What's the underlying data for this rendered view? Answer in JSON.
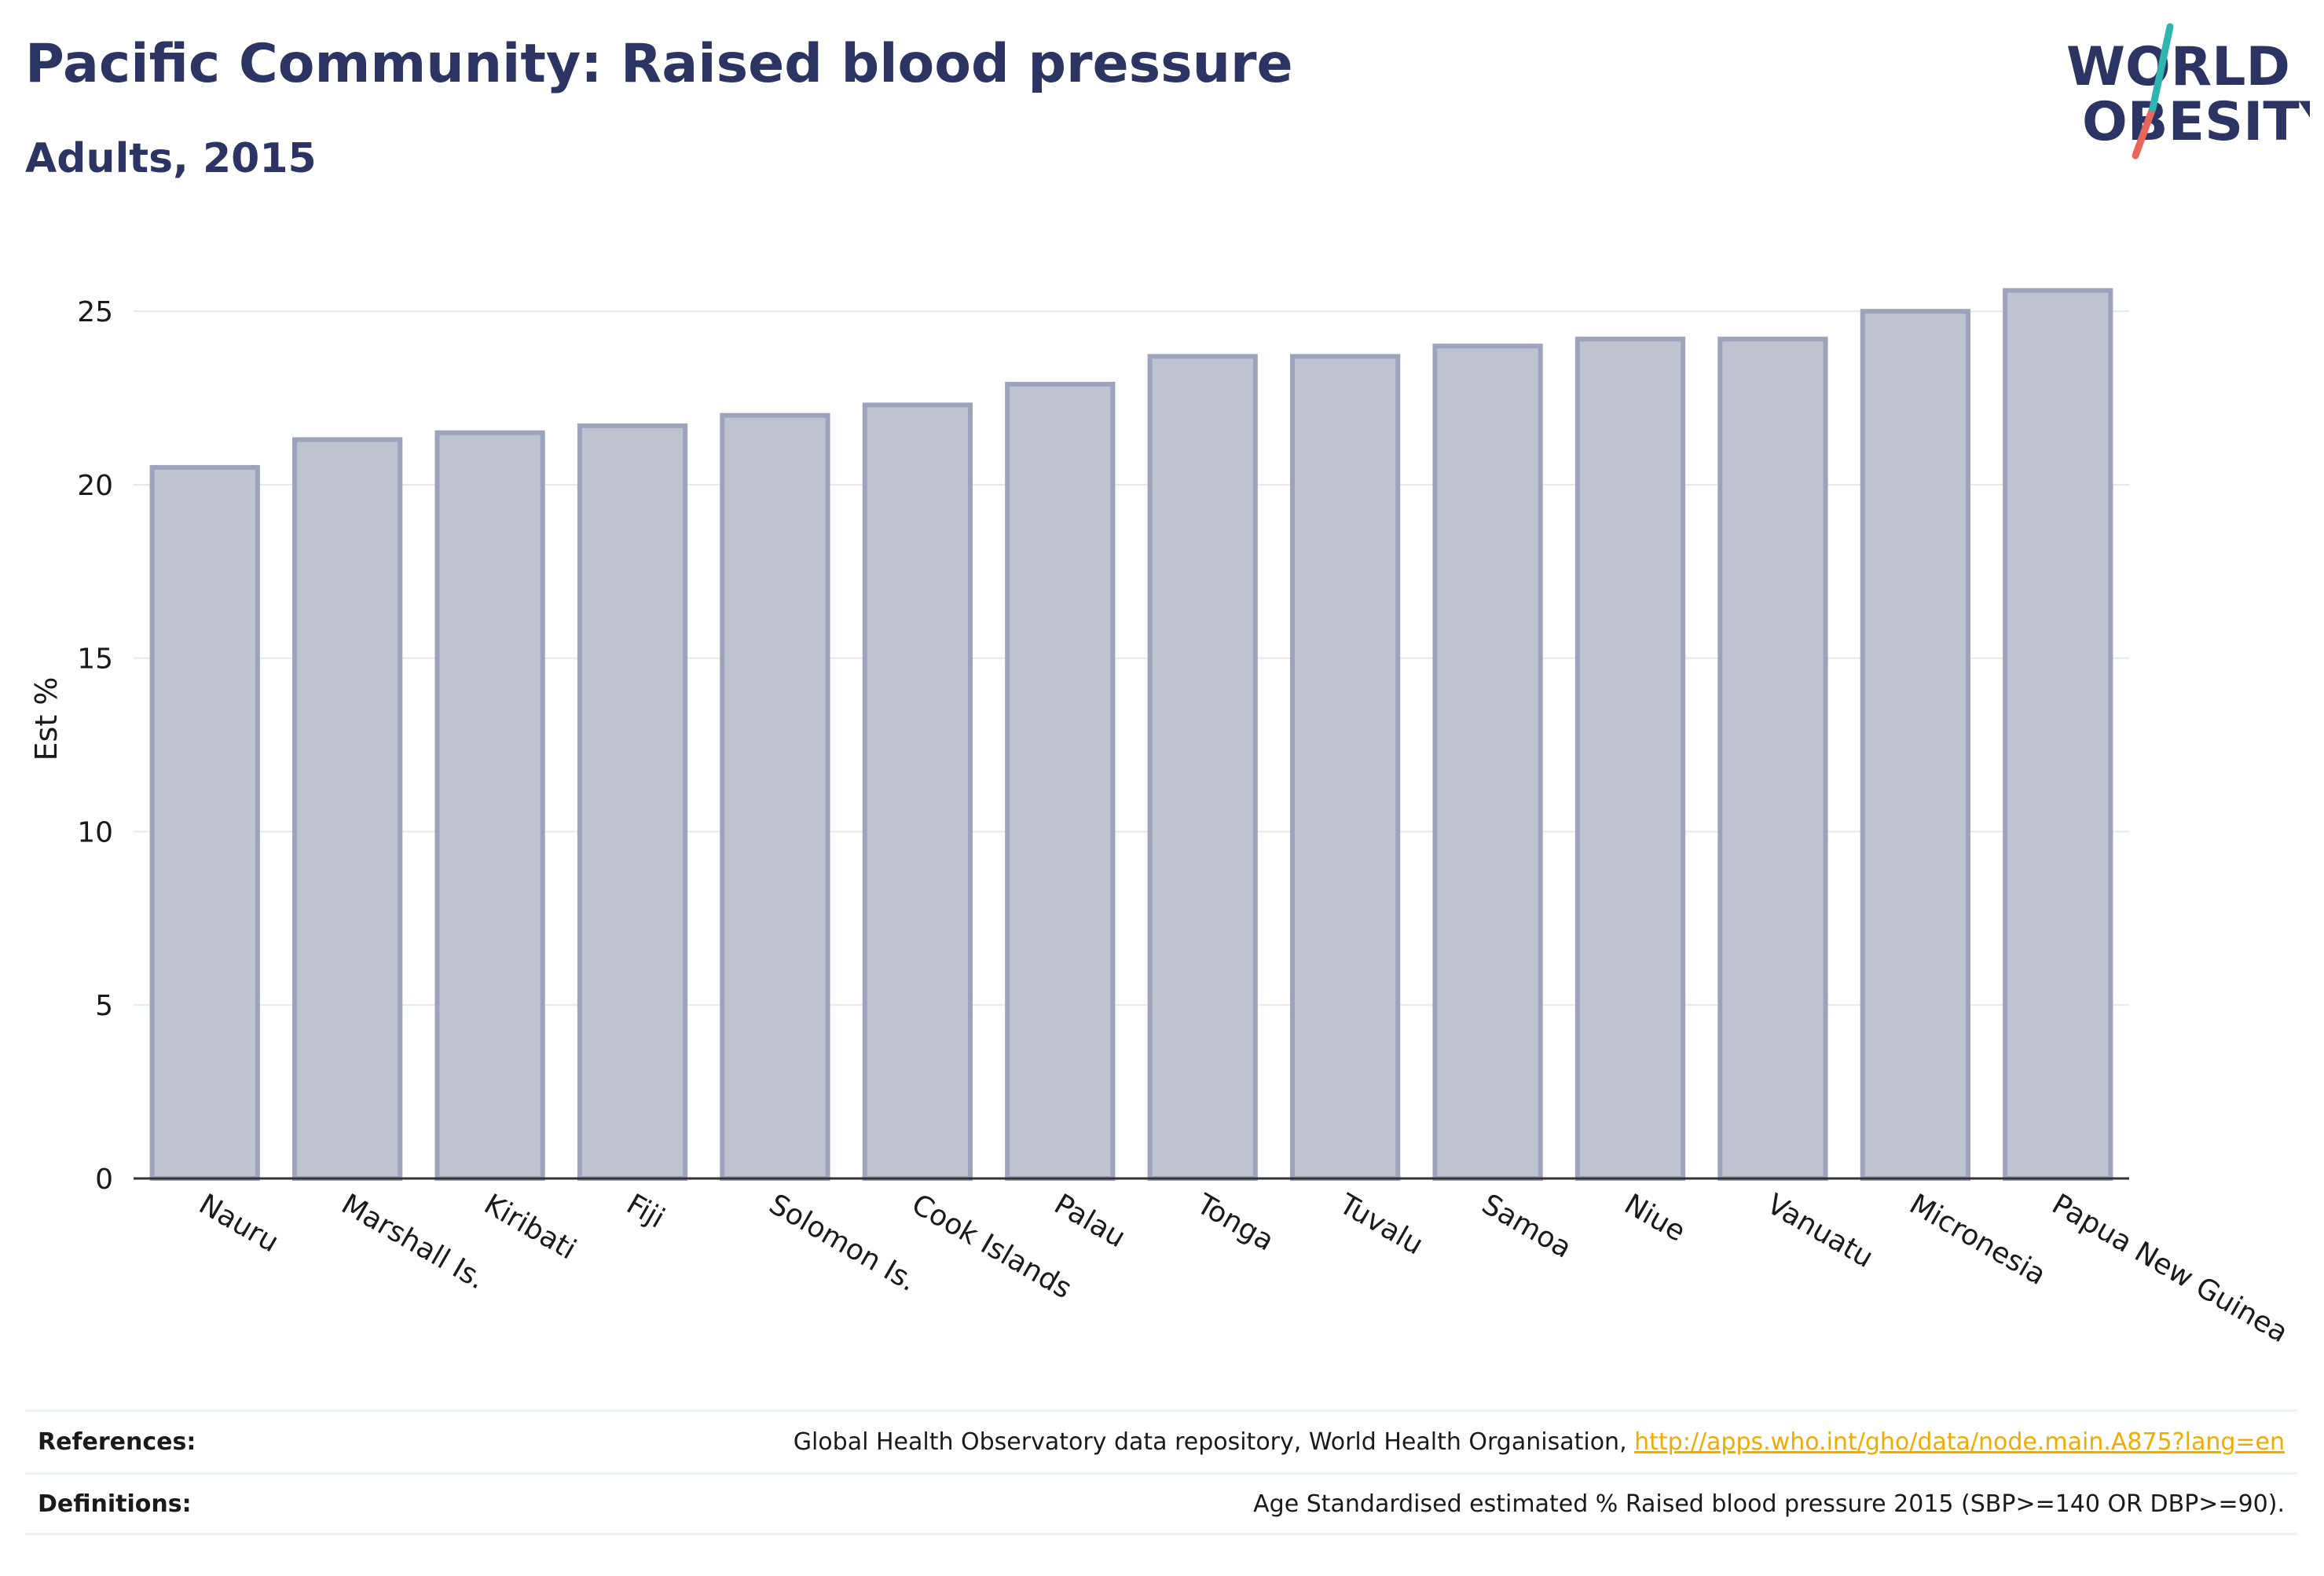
{
  "header": {
    "title": "Pacific Community: Raised blood pressure",
    "subtitle": "Adults, 2015"
  },
  "logo": {
    "line1": "WORLD",
    "line2": "OBESITY",
    "colors": {
      "text": "#2b3463",
      "slash_teal": "#2fb5b0",
      "slash_coral": "#e8675a"
    }
  },
  "chart_data": {
    "type": "bar",
    "title": "Pacific Community: Raised blood pressure",
    "subtitle": "Adults, 2015",
    "xlabel": "",
    "ylabel": "Est %",
    "ylim": [
      0,
      26.5
    ],
    "yticks": [
      0,
      5,
      10,
      15,
      20,
      25
    ],
    "grid": true,
    "categories": [
      "Nauru",
      "Marshall Is.",
      "Kiribati",
      "Fiji",
      "Solomon Is.",
      "Cook Islands",
      "Palau",
      "Tonga",
      "Tuvalu",
      "Samoa",
      "Niue",
      "Vanuatu",
      "Micronesia",
      "Papua New Guinea"
    ],
    "values": [
      20.5,
      21.3,
      21.5,
      21.7,
      22.0,
      22.3,
      22.9,
      23.7,
      23.7,
      24.0,
      24.2,
      24.2,
      25.0,
      25.6
    ],
    "colors": {
      "bar_fill": "#bfc2cf",
      "bar_stroke": "#9ea3bd",
      "axis": "#333333",
      "grid": "#e6e7ee"
    }
  },
  "footer": {
    "references_label": "References:",
    "references_text": "Global Health Observatory data repository, World Health Organisation, ",
    "references_link": "http://apps.who.int/gho/data/node.main.A875?lang=en",
    "definitions_label": "Definitions:",
    "definitions_text": "Age Standardised estimated % Raised blood pressure 2015 (SBP>=140 OR DBP>=90)."
  }
}
